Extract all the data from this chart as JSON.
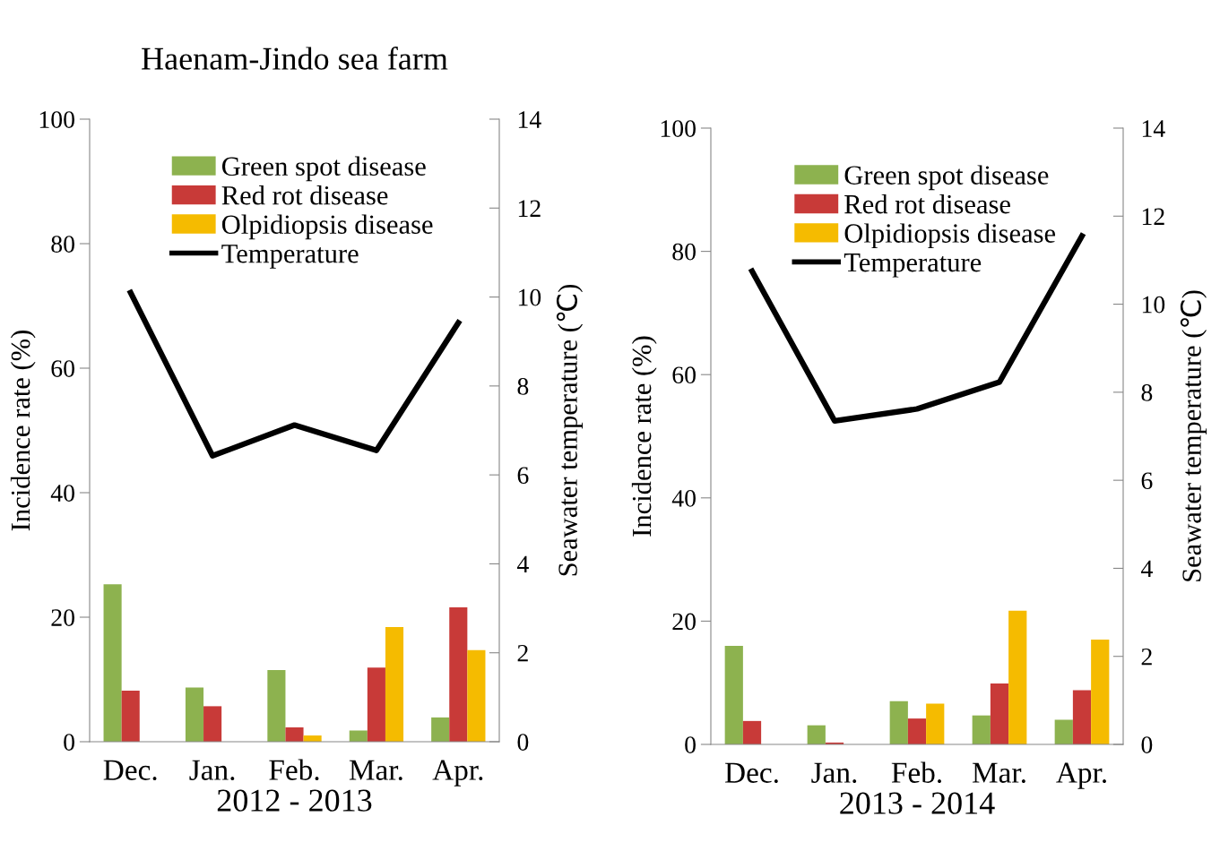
{
  "chart_data": [
    {
      "type": "bar",
      "title": "Haenam-Jindo sea farm",
      "xlabel": "2012 - 2013",
      "ylabel": "Incidence rate (%)",
      "y2label": "Seawater temperature (℃)",
      "categories": [
        "Dec.",
        "Jan.",
        "Feb.",
        "Mar.",
        "Apr."
      ],
      "series": [
        {
          "name": "Green spot disease",
          "color": "#8db24f",
          "values": [
            25.3,
            8.7,
            11.5,
            1.8,
            3.9
          ]
        },
        {
          "name": "Red rot disease",
          "color": "#c83a38",
          "values": [
            8.2,
            5.7,
            2.3,
            11.9,
            21.6
          ]
        },
        {
          "name": "Olpidiopsis disease",
          "color": "#f5bb00",
          "values": [
            0,
            0,
            1.0,
            18.4,
            14.7
          ]
        },
        {
          "name": "Temperature",
          "type": "line",
          "axis": "y2",
          "color": "#000000",
          "values": [
            10.1,
            6.43,
            7.12,
            6.55,
            9.42
          ]
        }
      ],
      "ylim": [
        0,
        100
      ],
      "yticks": [
        0,
        20,
        40,
        60,
        80,
        100
      ],
      "y2lim": [
        0,
        14
      ],
      "y2ticks": [
        0,
        2,
        4,
        6,
        8,
        10,
        12,
        14
      ],
      "grid": false,
      "legend": "top"
    },
    {
      "type": "bar",
      "xlabel": "2013 - 2014",
      "ylabel": "Incidence rate (%)",
      "y2label": "Seawater temperature (℃)",
      "categories": [
        "Dec.",
        "Jan.",
        "Feb.",
        "Mar.",
        "Apr."
      ],
      "series": [
        {
          "name": "Green spot disease",
          "color": "#8db24f",
          "values": [
            16.0,
            3.1,
            7.0,
            4.7,
            4.0
          ]
        },
        {
          "name": "Red rot disease",
          "color": "#c83a38",
          "values": [
            3.8,
            0.3,
            4.2,
            9.9,
            8.8
          ]
        },
        {
          "name": "Olpidiopsis disease",
          "color": "#f5bb00",
          "values": [
            0,
            0,
            6.6,
            21.7,
            17.0
          ]
        },
        {
          "name": "Temperature",
          "type": "line",
          "axis": "y2",
          "color": "#000000",
          "values": [
            10.75,
            7.35,
            7.62,
            8.23,
            11.55
          ]
        }
      ],
      "ylim": [
        0,
        100
      ],
      "yticks": [
        0,
        20,
        40,
        60,
        80,
        100
      ],
      "y2lim": [
        0,
        14
      ],
      "y2ticks": [
        0,
        2,
        4,
        6,
        8,
        10,
        12,
        14
      ],
      "grid": false,
      "legend": "top"
    }
  ]
}
